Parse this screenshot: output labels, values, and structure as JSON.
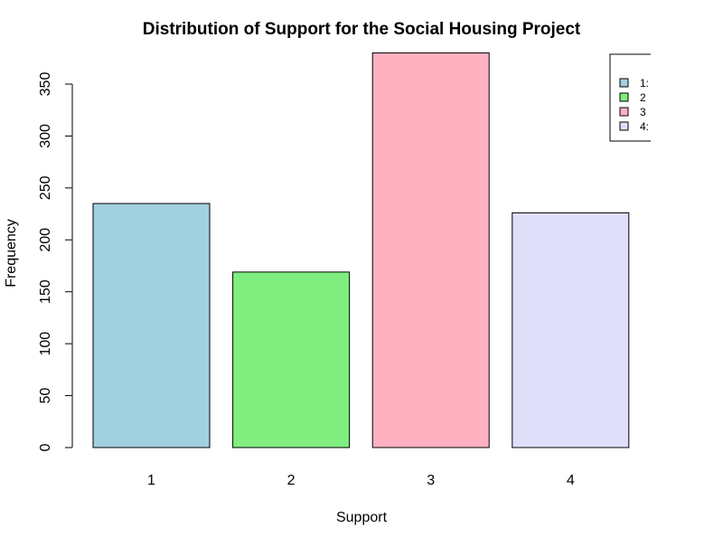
{
  "chart_data": {
    "type": "bar",
    "title": "Distribution of Support for the Social Housing Project",
    "xlabel": "Support",
    "ylabel": "Frequency",
    "categories": [
      "1",
      "2",
      "3",
      "4"
    ],
    "values": [
      235,
      169,
      380,
      226
    ],
    "colors": [
      "#a1d0e0",
      "#80ee7f",
      "#ffb0c1",
      "#dfdffa"
    ],
    "ylim": [
      0,
      380
    ],
    "yticks": [
      0,
      50,
      100,
      150,
      200,
      250,
      300,
      350
    ],
    "grid": false,
    "legend": {
      "placement": "top-right",
      "labels": [
        "1:",
        "2",
        "3",
        "4:"
      ]
    }
  }
}
